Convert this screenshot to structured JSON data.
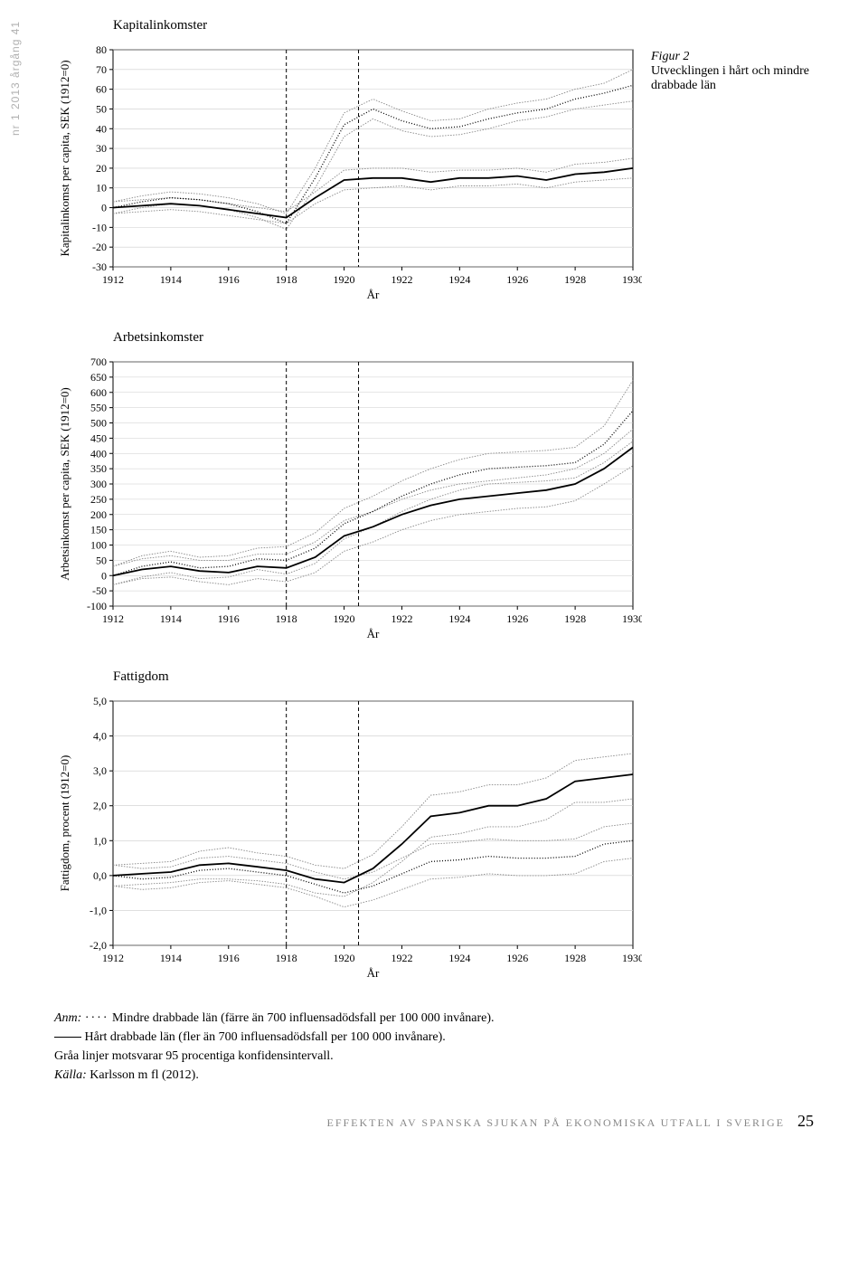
{
  "side_label": "nr 1 2013 årgång 41",
  "figure_caption": {
    "num": "Figur 2",
    "text": "Utvecklingen i hårt och mindre drabbade län"
  },
  "chart1": {
    "type": "line",
    "title": "Kapitalinkomster",
    "ylabel": "Kapitalinkomst per capita, SEK (1912=0)",
    "xlabel": "År",
    "xlim": [
      1912,
      1930
    ],
    "ylim": [
      -30,
      80
    ],
    "xticks": [
      1912,
      1914,
      1916,
      1918,
      1920,
      1922,
      1924,
      1926,
      1928,
      1930
    ],
    "yticks": [
      -30,
      -20,
      -10,
      0,
      10,
      20,
      30,
      40,
      50,
      60,
      70,
      80
    ],
    "event_x": [
      1918,
      1920.5
    ],
    "years": [
      1912,
      1913,
      1914,
      1915,
      1916,
      1917,
      1918,
      1919,
      1920,
      1921,
      1922,
      1923,
      1924,
      1925,
      1926,
      1927,
      1928,
      1929,
      1930
    ],
    "solid": [
      0,
      1,
      2,
      1,
      -1,
      -3,
      -5,
      5,
      14,
      15,
      15,
      13,
      15,
      15,
      16,
      14,
      17,
      18,
      20
    ],
    "solid_hi": [
      3,
      4,
      5,
      4,
      2,
      0,
      -2,
      8,
      19,
      20,
      20,
      18,
      19,
      19,
      20,
      18,
      22,
      23,
      25
    ],
    "solid_lo": [
      -3,
      -2,
      -1,
      -2,
      -4,
      -6,
      -8,
      2,
      9,
      10,
      11,
      9,
      11,
      11,
      12,
      10,
      13,
      14,
      15
    ],
    "dotted": [
      0,
      3,
      5,
      4,
      2,
      -2,
      -8,
      15,
      42,
      50,
      44,
      40,
      41,
      45,
      48,
      50,
      55,
      58,
      62
    ],
    "dotted_hi": [
      3,
      6,
      8,
      7,
      5,
      2,
      -3,
      20,
      48,
      55,
      49,
      44,
      45,
      50,
      53,
      55,
      60,
      63,
      70
    ],
    "dotted_lo": [
      -3,
      0,
      2,
      1,
      -1,
      -5,
      -11,
      10,
      36,
      45,
      39,
      36,
      37,
      40,
      44,
      46,
      50,
      52,
      54
    ]
  },
  "chart2": {
    "type": "line",
    "title": "Arbetsinkomster",
    "ylabel": "Arbetsinkomst per capita, SEK (1912=0)",
    "xlabel": "År",
    "xlim": [
      1912,
      1930
    ],
    "ylim": [
      -100,
      700
    ],
    "xticks": [
      1912,
      1914,
      1916,
      1918,
      1920,
      1922,
      1924,
      1926,
      1928,
      1930
    ],
    "yticks": [
      -100,
      -50,
      0,
      50,
      100,
      150,
      200,
      250,
      300,
      350,
      400,
      450,
      500,
      550,
      600,
      650,
      700
    ],
    "event_x": [
      1918,
      1920.5
    ],
    "years": [
      1912,
      1913,
      1914,
      1915,
      1916,
      1917,
      1918,
      1919,
      1920,
      1921,
      1922,
      1923,
      1924,
      1925,
      1926,
      1927,
      1928,
      1929,
      1930
    ],
    "solid": [
      0,
      20,
      30,
      15,
      10,
      30,
      25,
      60,
      130,
      160,
      200,
      230,
      250,
      260,
      270,
      280,
      300,
      350,
      420
    ],
    "solid_hi": [
      30,
      55,
      65,
      50,
      50,
      70,
      70,
      110,
      180,
      210,
      250,
      280,
      300,
      310,
      320,
      330,
      350,
      400,
      480
    ],
    "solid_lo": [
      -30,
      -10,
      -5,
      -20,
      -30,
      -10,
      -20,
      10,
      80,
      110,
      150,
      180,
      200,
      210,
      220,
      225,
      245,
      300,
      360
    ],
    "dotted": [
      0,
      30,
      45,
      25,
      30,
      55,
      50,
      90,
      170,
      210,
      260,
      300,
      330,
      350,
      355,
      360,
      370,
      430,
      540
    ],
    "dotted_hi": [
      30,
      65,
      80,
      60,
      65,
      90,
      95,
      140,
      220,
      260,
      310,
      350,
      380,
      400,
      405,
      410,
      420,
      490,
      640
    ],
    "dotted_lo": [
      -30,
      -5,
      10,
      -10,
      -5,
      20,
      5,
      40,
      120,
      160,
      210,
      250,
      280,
      300,
      305,
      310,
      320,
      370,
      440
    ]
  },
  "chart3": {
    "type": "line",
    "title": "Fattigdom",
    "ylabel": "Fattigdom, procent (1912=0)",
    "xlabel": "År",
    "xlim": [
      1912,
      1930
    ],
    "ylim": [
      -2.0,
      5.0
    ],
    "xticks": [
      1912,
      1914,
      1916,
      1918,
      1920,
      1922,
      1924,
      1926,
      1928,
      1930
    ],
    "yticks": [
      "-2,0",
      "-1,0",
      "0,0",
      "1,0",
      "2,0",
      "3,0",
      "4,0",
      "5,0"
    ],
    "ytick_vals": [
      -2.0,
      -1.0,
      0.0,
      1.0,
      2.0,
      3.0,
      4.0,
      5.0
    ],
    "event_x": [
      1918,
      1920.5
    ],
    "years": [
      1912,
      1913,
      1914,
      1915,
      1916,
      1917,
      1918,
      1919,
      1920,
      1921,
      1922,
      1923,
      1924,
      1925,
      1926,
      1927,
      1928,
      1929,
      1930
    ],
    "solid": [
      0,
      0.05,
      0.1,
      0.3,
      0.35,
      0.25,
      0.15,
      -0.1,
      -0.2,
      0.2,
      0.9,
      1.7,
      1.8,
      2.0,
      2.0,
      2.2,
      2.7,
      2.8,
      2.9
    ],
    "solid_hi": [
      0.3,
      0.35,
      0.4,
      0.7,
      0.8,
      0.65,
      0.55,
      0.3,
      0.2,
      0.6,
      1.4,
      2.3,
      2.4,
      2.6,
      2.6,
      2.8,
      3.3,
      3.4,
      3.5
    ],
    "solid_lo": [
      -0.3,
      -0.25,
      -0.2,
      -0.1,
      -0.1,
      -0.15,
      -0.25,
      -0.5,
      -0.6,
      -0.2,
      0.4,
      1.1,
      1.2,
      1.4,
      1.4,
      1.6,
      2.1,
      2.1,
      2.2
    ],
    "dotted": [
      0,
      -0.1,
      -0.05,
      0.15,
      0.2,
      0.1,
      0.0,
      -0.25,
      -0.5,
      -0.3,
      0.05,
      0.4,
      0.45,
      0.55,
      0.5,
      0.5,
      0.55,
      0.9,
      1.0
    ],
    "dotted_hi": [
      0.3,
      0.2,
      0.25,
      0.5,
      0.55,
      0.45,
      0.35,
      0.1,
      -0.1,
      0.1,
      0.5,
      0.9,
      0.95,
      1.05,
      1.0,
      1.0,
      1.05,
      1.4,
      1.5
    ],
    "dotted_lo": [
      -0.3,
      -0.4,
      -0.35,
      -0.2,
      -0.15,
      -0.25,
      -0.35,
      -0.6,
      -0.9,
      -0.7,
      -0.4,
      -0.1,
      -0.05,
      0.05,
      0.0,
      0.0,
      0.05,
      0.4,
      0.5
    ]
  },
  "notes": {
    "anm_label": "Anm:",
    "dotted_note": " Mindre drabbade län (färre än 700 influensadödsfall per 100 000 invånare).",
    "solid_note": " Hårt drabbade län (fler än 700 influensadödsfall per 100 000 invånare).",
    "ci_note": "Gråa linjer motsvarar 95 procentiga konfidensintervall.",
    "kalla_label": "Källa:",
    "kalla_text": " Karlsson m fl (2012)."
  },
  "footer": {
    "text": "EFFEKTEN AV SPANSKA SJUKAN PÅ EKONOMISKA UTFALL I SVERIGE",
    "page": "25"
  }
}
